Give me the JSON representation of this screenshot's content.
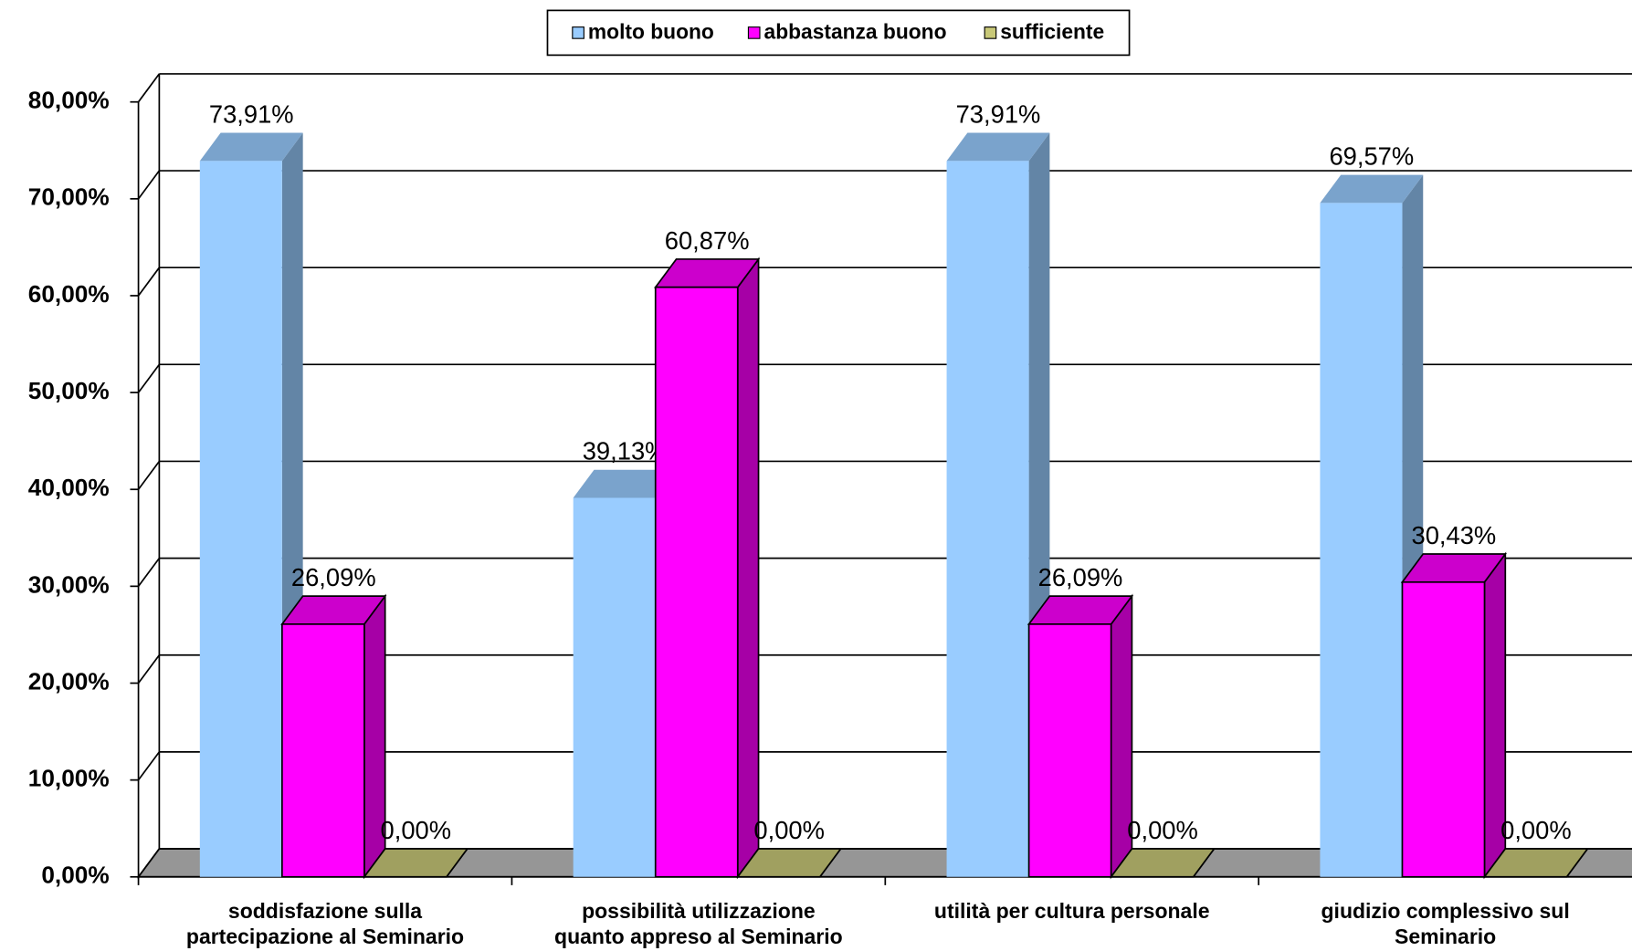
{
  "chart_data": {
    "type": "bar3d",
    "categories": [
      "soddisfazione sulla\npartecipazione al Seminario",
      "possibilità utilizzazione\nquanto appreso al Seminario",
      "utilità per cultura personale",
      "giudizio complessivo sul\nSeminario"
    ],
    "series": [
      {
        "name": "molto buono",
        "color": "#99ccff",
        "values": [
          73.91,
          39.13,
          73.91,
          69.57
        ],
        "value_labels": [
          "73,91%",
          "39,13%",
          "73,91%",
          "69,57%"
        ]
      },
      {
        "name": "abbastanza buono",
        "color": "#ff00ff",
        "values": [
          26.09,
          60.87,
          26.09,
          30.43
        ],
        "value_labels": [
          "26,09%",
          "60,87%",
          "26,09%",
          "30,43%"
        ]
      },
      {
        "name": "sufficiente",
        "color": "#c8c878",
        "values": [
          0,
          0,
          0,
          0
        ],
        "value_labels": [
          "0,00%",
          "0,00%",
          "0,00%",
          "0,00%"
        ]
      }
    ],
    "ylim": [
      0,
      80
    ],
    "yticks": [
      {
        "value": 0,
        "label": "0,00%"
      },
      {
        "value": 10,
        "label": "10,00%"
      },
      {
        "value": 20,
        "label": "20,00%"
      },
      {
        "value": 30,
        "label": "30,00%"
      },
      {
        "value": 40,
        "label": "40,00%"
      },
      {
        "value": 50,
        "label": "50,00%"
      },
      {
        "value": 60,
        "label": "60,00%"
      },
      {
        "value": 70,
        "label": "70,00%"
      },
      {
        "value": 80,
        "label": "80,00%"
      }
    ],
    "grid": true,
    "legend": "top"
  }
}
